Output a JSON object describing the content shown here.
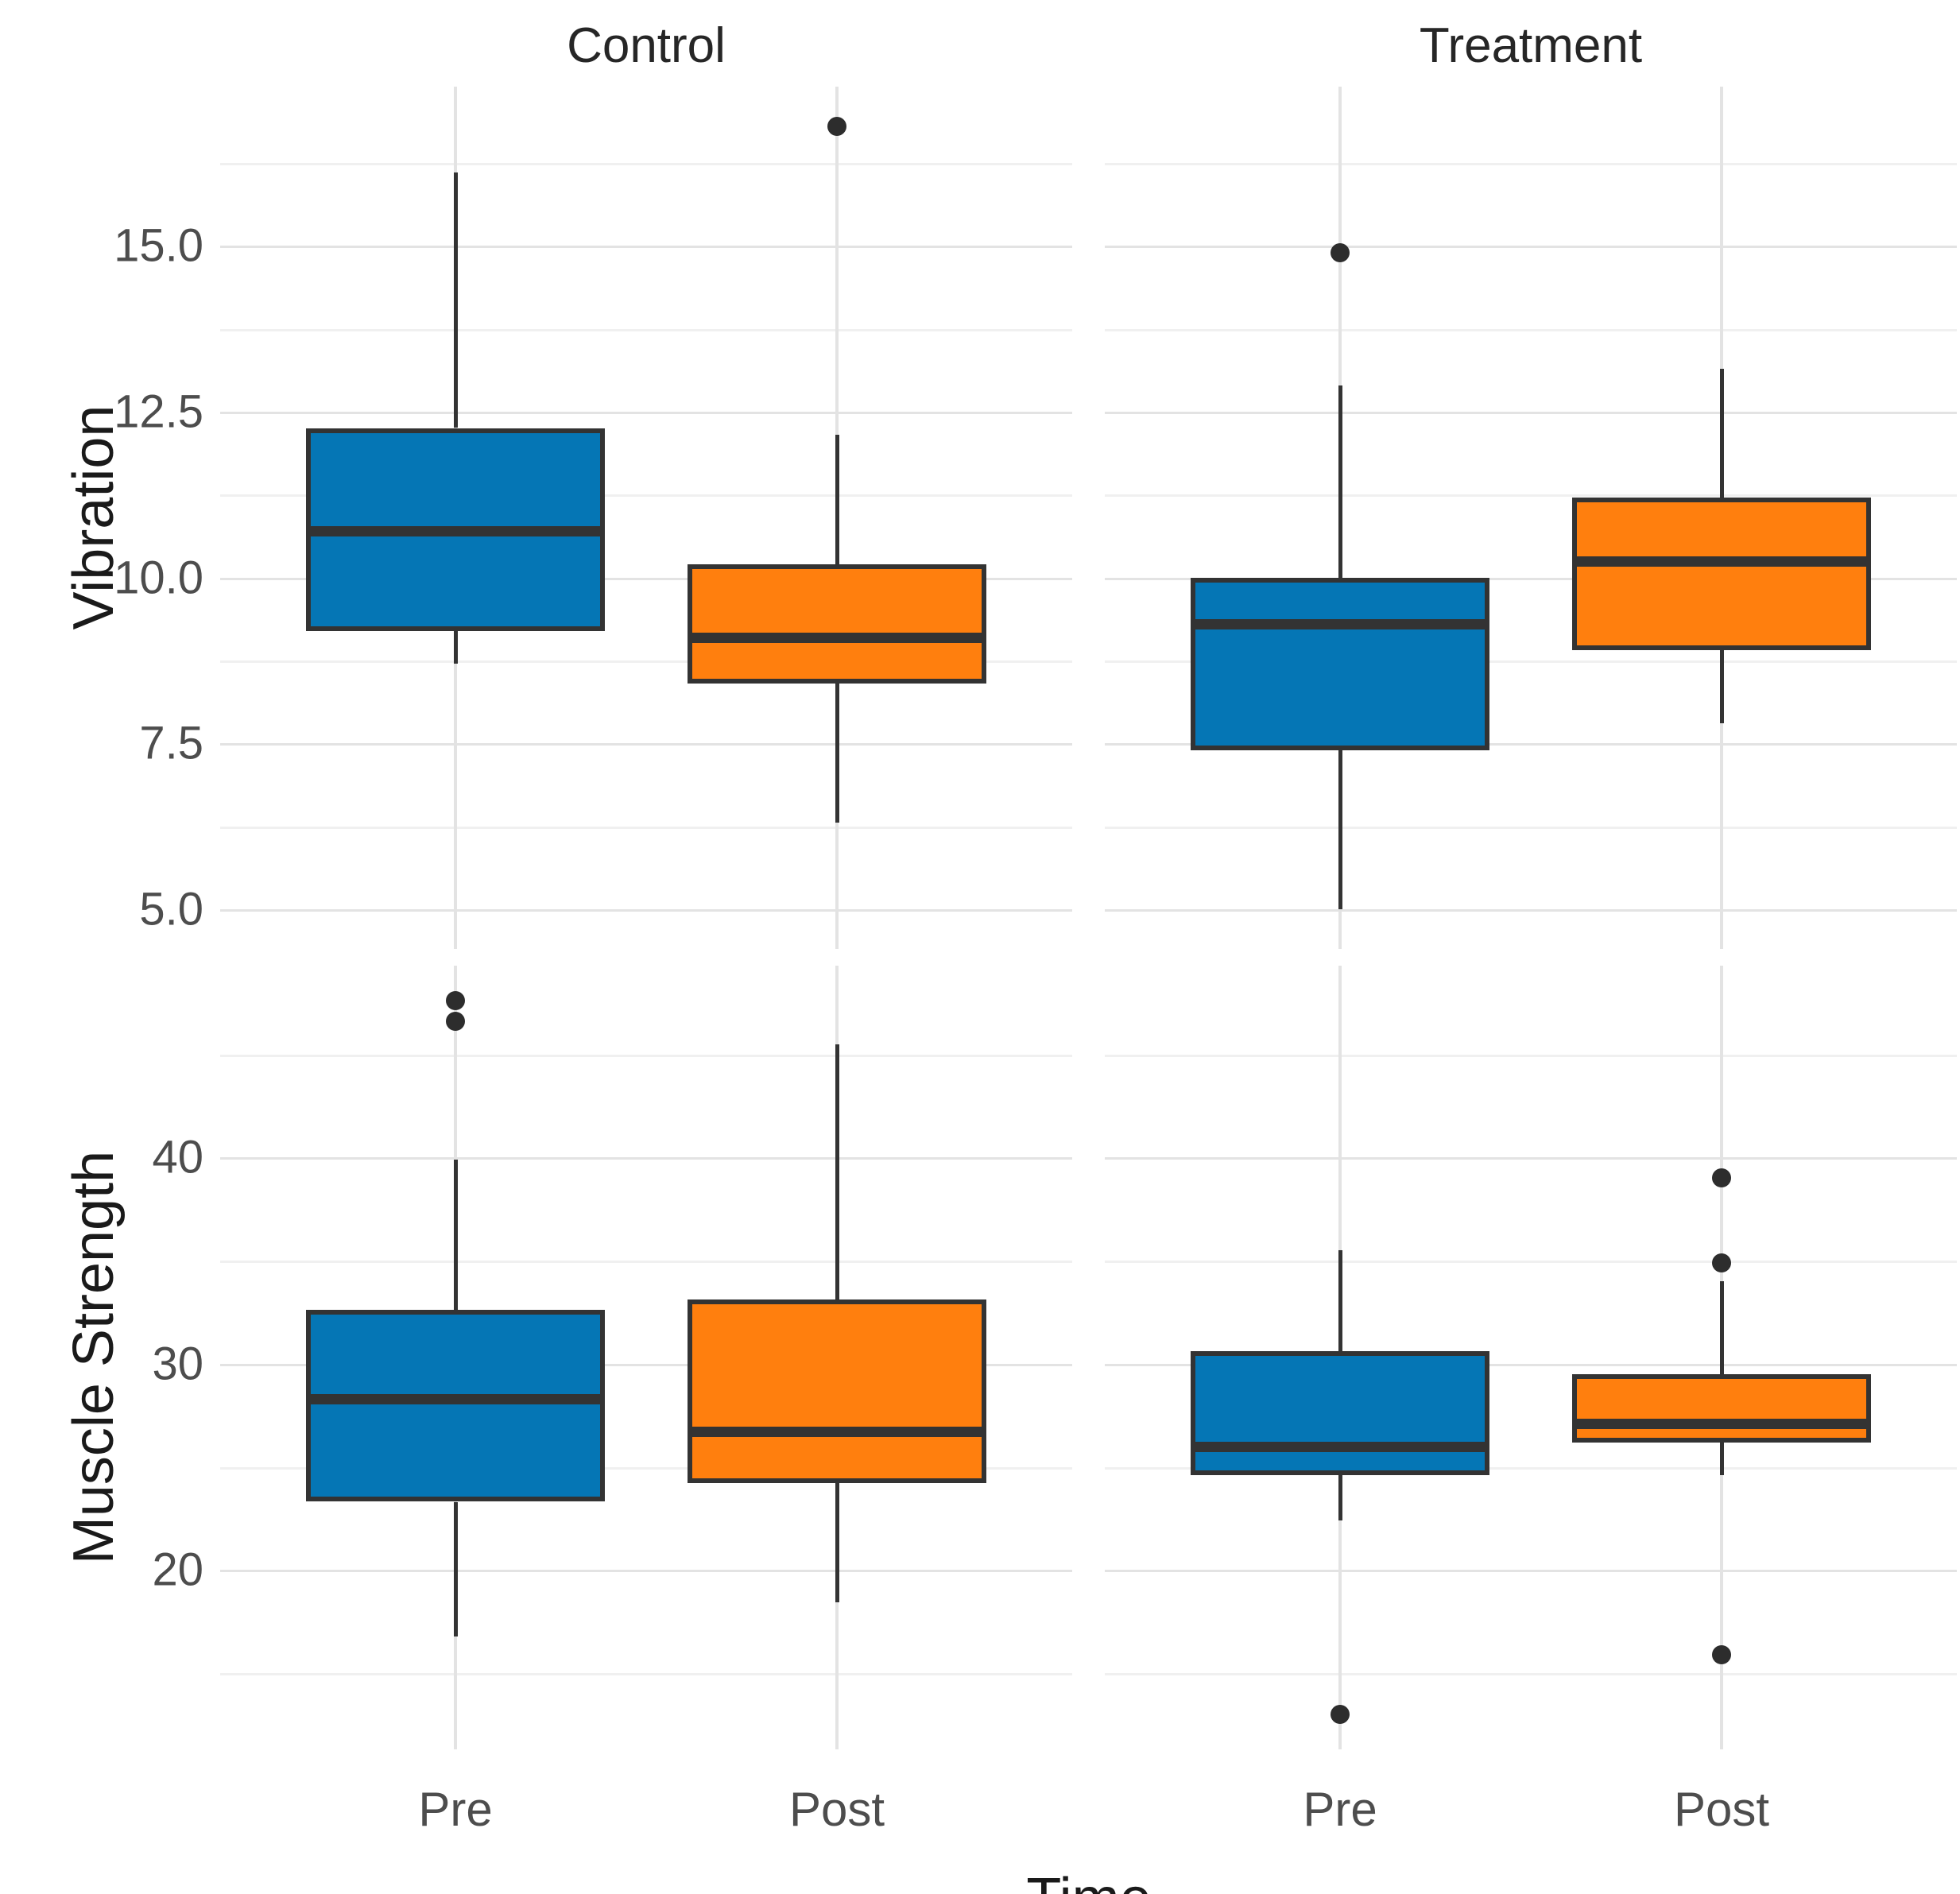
{
  "chart_data": {
    "type": "boxplot",
    "facet_columns": [
      "Control",
      "Treatment"
    ],
    "x_title": "Time",
    "categories": [
      "Pre",
      "Post"
    ],
    "category_colors": {
      "Pre": "#0576b5",
      "Post": "#ff7f0e"
    },
    "stroke_color": "#333333",
    "outlier_color": "#2d2d2d",
    "grid_major_color": "#e3e3e3",
    "grid_minor_color": "#f0f0f0",
    "tick_text_color": "#4d4d4d",
    "rows": [
      {
        "label": "Vibration",
        "ylim": [
          4.4,
          17.4
        ],
        "ticks": [
          {
            "v": 15.0,
            "label": "15.0"
          },
          {
            "v": 12.5,
            "label": "12.5"
          },
          {
            "v": 10.0,
            "label": "10.0"
          },
          {
            "v": 7.5,
            "label": "7.5"
          },
          {
            "v": 5.0,
            "label": "5.0"
          }
        ],
        "minor_ticks": [
          16.25,
          13.75,
          11.25,
          8.75,
          6.25
        ]
      },
      {
        "label": "Muscle Strength",
        "ylim": [
          11.3,
          49.3
        ],
        "ticks": [
          {
            "v": 40,
            "label": "40"
          },
          {
            "v": 30,
            "label": "30"
          },
          {
            "v": 20,
            "label": "20"
          }
        ],
        "minor_ticks": [
          45,
          35,
          25,
          15
        ]
      }
    ],
    "boxes": [
      {
        "row": 0,
        "col": 0,
        "cat": 0,
        "low": 8.7,
        "q1": 9.2,
        "median": 10.7,
        "q3": 12.25,
        "high": 16.1,
        "outliers": []
      },
      {
        "row": 0,
        "col": 0,
        "cat": 1,
        "low": 6.3,
        "q1": 8.4,
        "median": 9.1,
        "q3": 10.2,
        "high": 12.15,
        "outliers": [
          16.8
        ]
      },
      {
        "row": 0,
        "col": 1,
        "cat": 0,
        "low": 5.0,
        "q1": 7.4,
        "median": 9.3,
        "q3": 10.0,
        "high": 12.9,
        "outliers": [
          14.9
        ]
      },
      {
        "row": 0,
        "col": 1,
        "cat": 1,
        "low": 7.8,
        "q1": 8.9,
        "median": 10.25,
        "q3": 11.2,
        "high": 13.15,
        "outliers": []
      },
      {
        "row": 1,
        "col": 0,
        "cat": 0,
        "low": 16.8,
        "q1": 23.3,
        "median": 28.3,
        "q3": 32.6,
        "high": 39.9,
        "outliers": [
          46.6,
          47.6
        ]
      },
      {
        "row": 1,
        "col": 0,
        "cat": 1,
        "low": 18.4,
        "q1": 24.2,
        "median": 26.7,
        "q3": 33.1,
        "high": 45.5,
        "outliers": []
      },
      {
        "row": 1,
        "col": 1,
        "cat": 0,
        "low": 22.4,
        "q1": 24.6,
        "median": 26.0,
        "q3": 30.6,
        "high": 35.5,
        "outliers": [
          13.0
        ]
      },
      {
        "row": 1,
        "col": 1,
        "cat": 1,
        "low": 24.6,
        "q1": 26.2,
        "median": 27.1,
        "q3": 29.5,
        "high": 34.0,
        "outliers": [
          39.0,
          34.9,
          15.9
        ]
      }
    ]
  }
}
